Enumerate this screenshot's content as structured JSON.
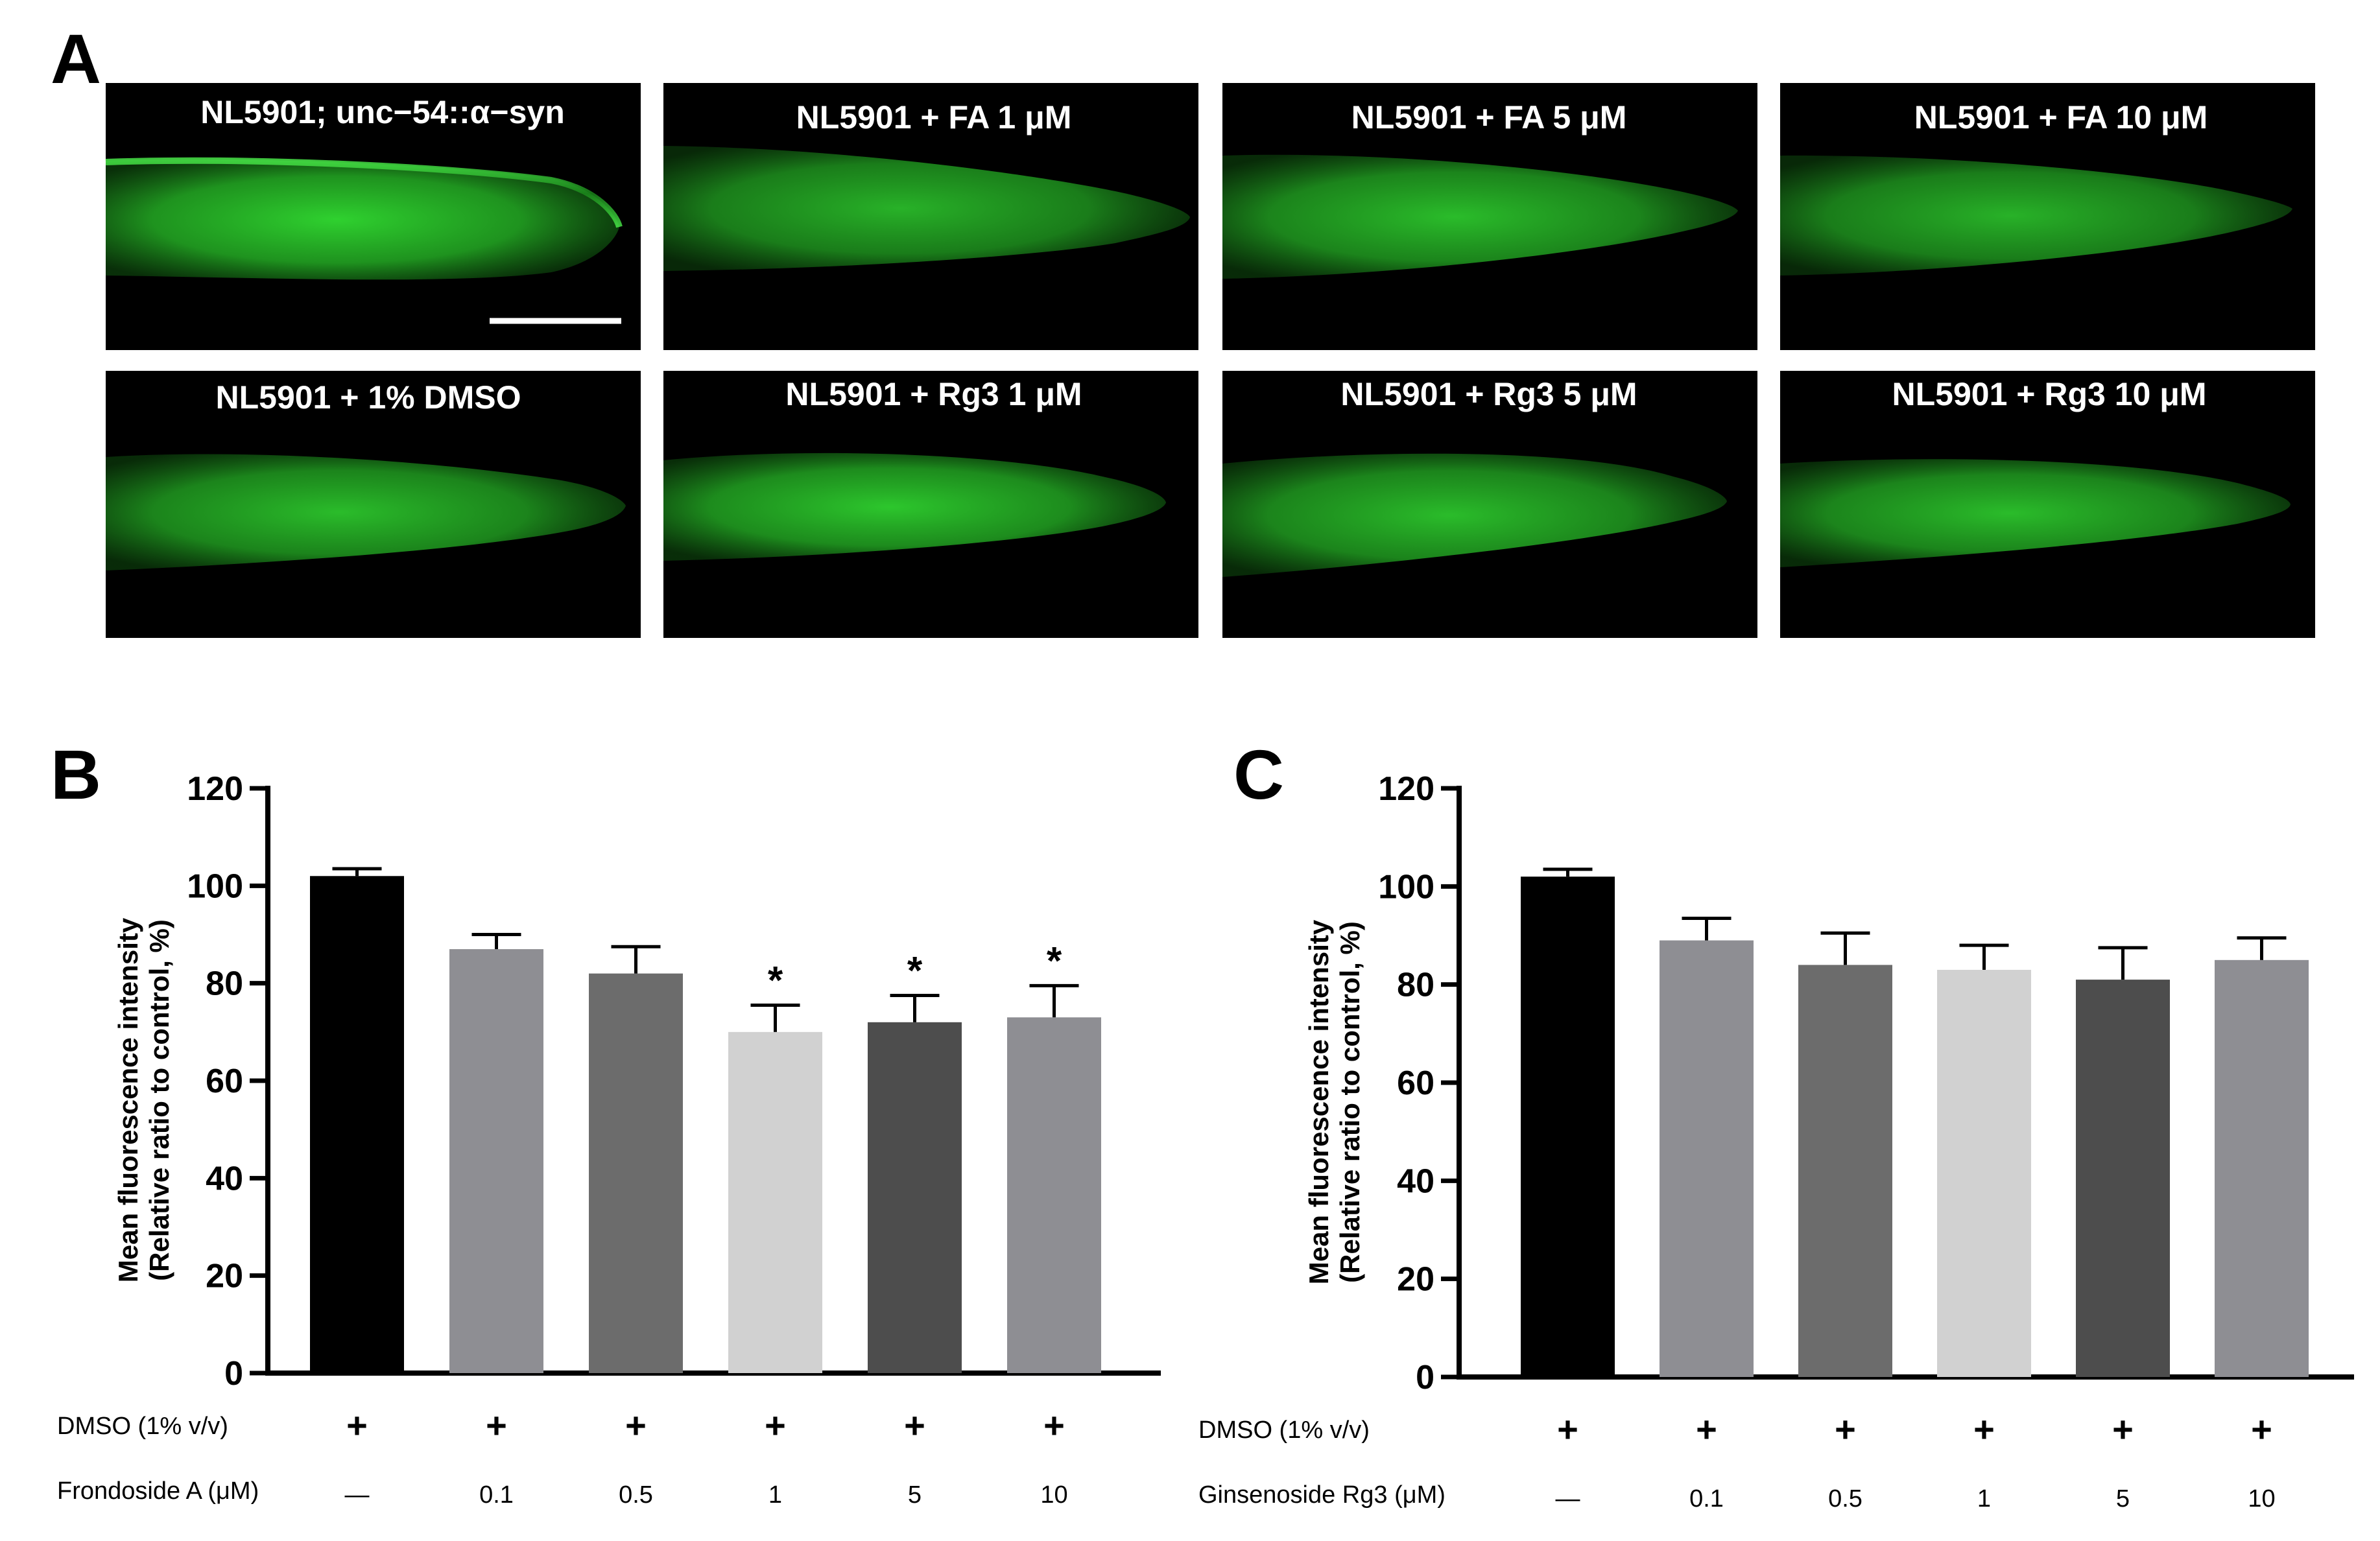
{
  "panels": {
    "a_letter": "A",
    "b_letter": "B",
    "c_letter": "C"
  },
  "micrographs": [
    {
      "label": "NL5901; unc−54::α−syn"
    },
    {
      "label": "NL5901 + FA 1 μM"
    },
    {
      "label": "NL5901 + FA 5 μM"
    },
    {
      "label": "NL5901 + FA 10 μM"
    },
    {
      "label": "NL5901 + 1% DMSO"
    },
    {
      "label": "NL5901 + Rg3 1 μM"
    },
    {
      "label": "NL5901 + Rg3 5 μM"
    },
    {
      "label": "NL5901 + Rg3 10 μM"
    }
  ],
  "micrograph_colors": {
    "background": "#000000",
    "fluorescence": "#39e639"
  },
  "chart_data": [
    {
      "type": "bar",
      "panel": "B",
      "ylabel": "Mean fluorescence intensity",
      "ylabel2": "(Relative ratio to control, %)",
      "ylim": [
        0,
        120
      ],
      "yticks": [
        0,
        20,
        40,
        60,
        80,
        100,
        120
      ],
      "rows": [
        {
          "label": "DMSO (1% v/v)",
          "values": [
            "+",
            "+",
            "+",
            "+",
            "+",
            "+"
          ]
        },
        {
          "label": "Frondoside A (μM)",
          "values": [
            "—",
            "0.1",
            "0.5",
            "1",
            "5",
            "10"
          ]
        }
      ],
      "values": [
        102,
        87,
        82,
        70,
        72,
        73
      ],
      "errors": [
        1.5,
        3,
        5.5,
        5.5,
        5.5,
        6.5
      ],
      "significance": [
        "",
        "",
        "",
        "*",
        "*",
        "*"
      ],
      "colors": [
        "#000000",
        "#8e8e93",
        "#6c6c6c",
        "#d1d1d1",
        "#4d4d4d",
        "#8e8e93"
      ]
    },
    {
      "type": "bar",
      "panel": "C",
      "ylabel": "Mean fluorescence intensity",
      "ylabel2": "(Relative ratio to control, %)",
      "ylim": [
        0,
        120
      ],
      "yticks": [
        0,
        20,
        40,
        60,
        80,
        100,
        120
      ],
      "rows": [
        {
          "label": "DMSO (1% v/v)",
          "values": [
            "+",
            "+",
            "+",
            "+",
            "+",
            "+"
          ]
        },
        {
          "label": "Ginsenoside Rg3 (μM)",
          "values": [
            "—",
            "0.1",
            "0.5",
            "1",
            "5",
            "10"
          ]
        }
      ],
      "values": [
        102,
        89,
        84,
        83,
        81,
        85
      ],
      "errors": [
        1.5,
        4.5,
        6.5,
        5,
        6.5,
        4.5
      ],
      "significance": [
        "",
        "",
        "",
        "",
        "",
        ""
      ],
      "colors": [
        "#000000",
        "#8e8e93",
        "#6c6c6c",
        "#d1d1d1",
        "#4d4d4d",
        "#8e8e93"
      ]
    }
  ]
}
